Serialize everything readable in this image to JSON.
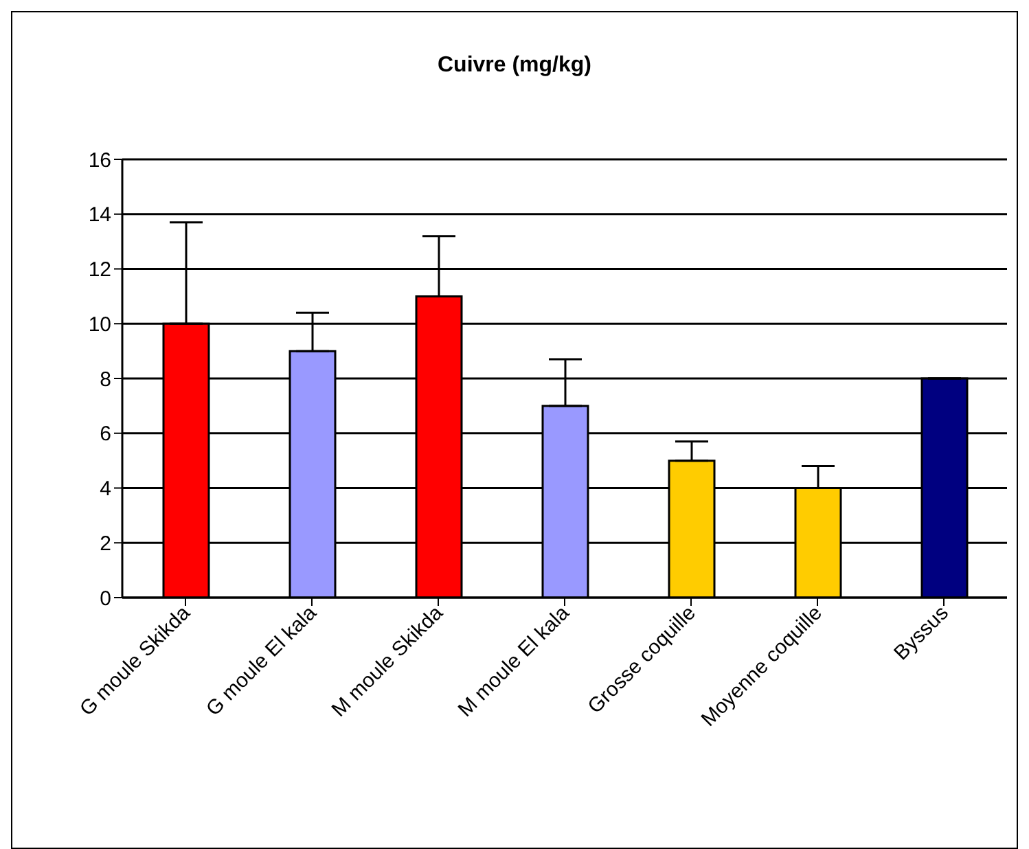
{
  "chart_data": {
    "type": "bar",
    "title": "Cuivre (mg/kg)",
    "categories": [
      "G moule Skikda",
      "G moule El kala",
      "M moule Skikda",
      "M moule El kala",
      "Grosse coquille",
      "Moyenne coquille",
      "Byssus"
    ],
    "values": [
      10,
      9,
      11,
      7,
      5,
      4,
      8
    ],
    "colors": [
      "#ff0000",
      "#9999ff",
      "#ff0000",
      "#9999ff",
      "#ffcc00",
      "#ffcc00",
      "#000080"
    ],
    "errors": [
      [
        10,
        13.7
      ],
      [
        9,
        10.4
      ],
      [
        11,
        13.2
      ],
      [
        7,
        8.7
      ],
      [
        5,
        5.7
      ],
      [
        4,
        4.8
      ],
      null
    ],
    "ylim": [
      0,
      16
    ],
    "yticks": [
      0,
      2,
      4,
      6,
      8,
      10,
      12,
      14,
      16
    ],
    "grid": "y"
  }
}
